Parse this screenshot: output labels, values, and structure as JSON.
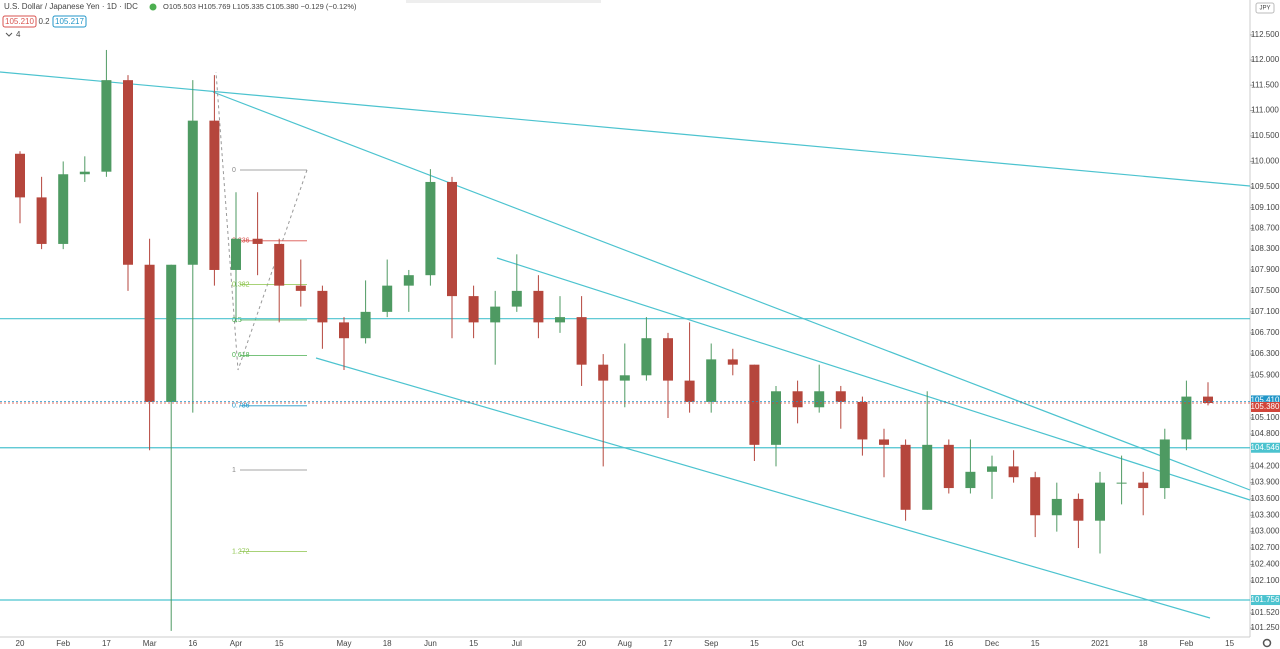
{
  "header": {
    "symbol": "U.S. Dollar / Japanese Yen · 1D · IDC",
    "ohlc": "O105.503 H105.769 L105.335 C105.380 −0.129 (−0.12%)",
    "sell": "105.210",
    "spread": "0.2",
    "buy": "105.217",
    "indicators": "4"
  },
  "chart_data": {
    "type": "candlestick",
    "log": true,
    "currency": "JPY",
    "up_color": "#4e9a62",
    "down_color": "#b5463c",
    "categories": [
      "20",
      null,
      "Feb",
      null,
      "17",
      null,
      "Mar",
      null,
      "16",
      null,
      "Apr",
      null,
      "15",
      null,
      null,
      "May",
      null,
      "18",
      null,
      "Jun",
      null,
      "15",
      null,
      "Jul",
      null,
      null,
      "20",
      null,
      "Aug",
      null,
      "17",
      null,
      "Sep",
      null,
      "15",
      null,
      "Oct",
      null,
      null,
      "19",
      null,
      "Nov",
      null,
      "16",
      null,
      "Dec",
      null,
      "15",
      null,
      null,
      "2021",
      null,
      "18",
      null,
      "Feb",
      null,
      "15"
    ],
    "open": [
      110.15,
      109.3,
      108.4,
      109.75,
      109.8,
      111.6,
      108.0,
      105.4,
      108.0,
      110.8,
      107.9,
      108.5,
      108.4,
      107.6,
      107.5,
      106.9,
      106.6,
      107.1,
      107.6,
      107.8,
      109.6,
      107.4,
      106.9,
      107.2,
      107.5,
      106.9,
      107.0,
      106.1,
      105.8,
      105.9,
      106.6,
      105.8,
      105.4,
      106.2,
      106.1,
      104.6,
      105.6,
      105.3,
      105.6,
      105.4,
      104.7,
      104.6,
      103.4,
      104.6,
      103.8,
      104.1,
      104.2,
      104.0,
      103.3,
      103.6,
      103.2,
      103.9,
      103.9,
      103.8,
      104.7,
      105.5,
      null
    ],
    "high": [
      110.2,
      109.7,
      110.0,
      110.1,
      112.2,
      111.7,
      108.5,
      108.0,
      111.6,
      111.7,
      109.4,
      109.4,
      108.5,
      108.1,
      107.6,
      107.0,
      107.7,
      108.1,
      107.9,
      109.85,
      109.7,
      107.6,
      107.5,
      108.2,
      107.8,
      107.4,
      107.4,
      106.3,
      106.5,
      107.0,
      106.7,
      106.9,
      106.5,
      106.4,
      106.1,
      105.7,
      105.8,
      106.1,
      105.7,
      105.5,
      104.9,
      104.7,
      105.6,
      104.7,
      104.7,
      104.4,
      104.5,
      104.1,
      103.9,
      103.7,
      104.1,
      104.4,
      104.1,
      104.9,
      105.8,
      105.769,
      null
    ],
    "low": [
      108.8,
      108.3,
      108.3,
      109.6,
      109.7,
      107.5,
      104.5,
      101.2,
      105.2,
      107.6,
      106.9,
      107.8,
      106.9,
      107.2,
      106.4,
      106.0,
      106.5,
      107.0,
      107.1,
      107.6,
      106.6,
      106.6,
      106.1,
      107.1,
      106.6,
      106.7,
      105.7,
      104.2,
      105.3,
      105.8,
      105.1,
      105.2,
      105.2,
      105.9,
      104.3,
      104.2,
      105.0,
      105.2,
      104.9,
      104.4,
      104.0,
      103.2,
      103.4,
      103.7,
      103.7,
      103.6,
      103.9,
      102.9,
      103.0,
      102.7,
      102.6,
      103.5,
      103.3,
      103.6,
      104.5,
      105.335,
      null
    ],
    "close": [
      109.3,
      108.4,
      109.75,
      109.8,
      111.6,
      108.0,
      105.4,
      108.0,
      110.8,
      107.9,
      108.5,
      108.4,
      107.6,
      107.5,
      106.9,
      106.6,
      107.1,
      107.6,
      107.8,
      109.6,
      107.4,
      106.9,
      107.2,
      107.5,
      106.9,
      107.0,
      106.1,
      105.8,
      105.9,
      106.6,
      105.8,
      105.4,
      106.2,
      106.1,
      104.6,
      105.6,
      105.3,
      105.6,
      105.4,
      104.7,
      104.6,
      103.4,
      104.6,
      103.8,
      104.1,
      104.2,
      104.0,
      103.3,
      103.6,
      103.2,
      103.9,
      103.9,
      103.8,
      104.7,
      105.5,
      105.38,
      null
    ],
    "ylim": [
      101.09,
      113.2
    ],
    "yticks": [
      {
        "value": 112.5,
        "label": "112.500"
      },
      {
        "value": 112,
        "label": "112.000"
      },
      {
        "value": 111.5,
        "label": "111.500"
      },
      {
        "value": 111,
        "label": "111.000"
      },
      {
        "value": 110.5,
        "label": "110.500"
      },
      {
        "value": 110,
        "label": "110.000"
      },
      {
        "value": 109.5,
        "label": "109.500"
      },
      {
        "value": 109.1,
        "label": "109.100"
      },
      {
        "value": 108.7,
        "label": "108.700"
      },
      {
        "value": 108.3,
        "label": "108.300"
      },
      {
        "value": 107.9,
        "label": "107.900"
      },
      {
        "value": 107.5,
        "label": "107.500"
      },
      {
        "value": 107.1,
        "label": "107.100"
      },
      {
        "value": 106.7,
        "label": "106.700"
      },
      {
        "value": 106.3,
        "label": "106.300"
      },
      {
        "value": 105.9,
        "label": "105.900"
      },
      {
        "value": 105.1,
        "label": "105.100"
      },
      {
        "value": 104.8,
        "label": "104.800"
      },
      {
        "value": 104.2,
        "label": "104.200"
      },
      {
        "value": 103.9,
        "label": "103.900"
      },
      {
        "value": 103.6,
        "label": "103.600"
      },
      {
        "value": 103.3,
        "label": "103.300"
      },
      {
        "value": 103,
        "label": "103.000"
      },
      {
        "value": 102.7,
        "label": "102.700"
      },
      {
        "value": 102.4,
        "label": "102.400"
      },
      {
        "value": 102.1,
        "label": "102.100"
      },
      {
        "value": 101.52,
        "label": "101.520"
      },
      {
        "value": 101.25,
        "label": "101.250"
      }
    ],
    "levels": [
      {
        "value": 106.97
      },
      {
        "value": 104.546,
        "label": "104.546"
      },
      {
        "value": 101.756,
        "label": "101.756"
      }
    ],
    "price_labels": [
      {
        "value": 105.41,
        "label": "105.410",
        "color": "#2196c8"
      },
      {
        "value": 105.38,
        "label": "105.380",
        "color": "#d2453a"
      }
    ],
    "fib": {
      "levels": [
        0,
        0.236,
        0.382,
        0.5,
        0.618,
        0.786,
        1,
        1.272
      ],
      "colors": [
        "#888888",
        "#d9534f",
        "#8bc34a",
        "#4caf50",
        "#4caf50",
        "#2196c8",
        "#888888",
        "#8bc34a"
      ]
    }
  }
}
